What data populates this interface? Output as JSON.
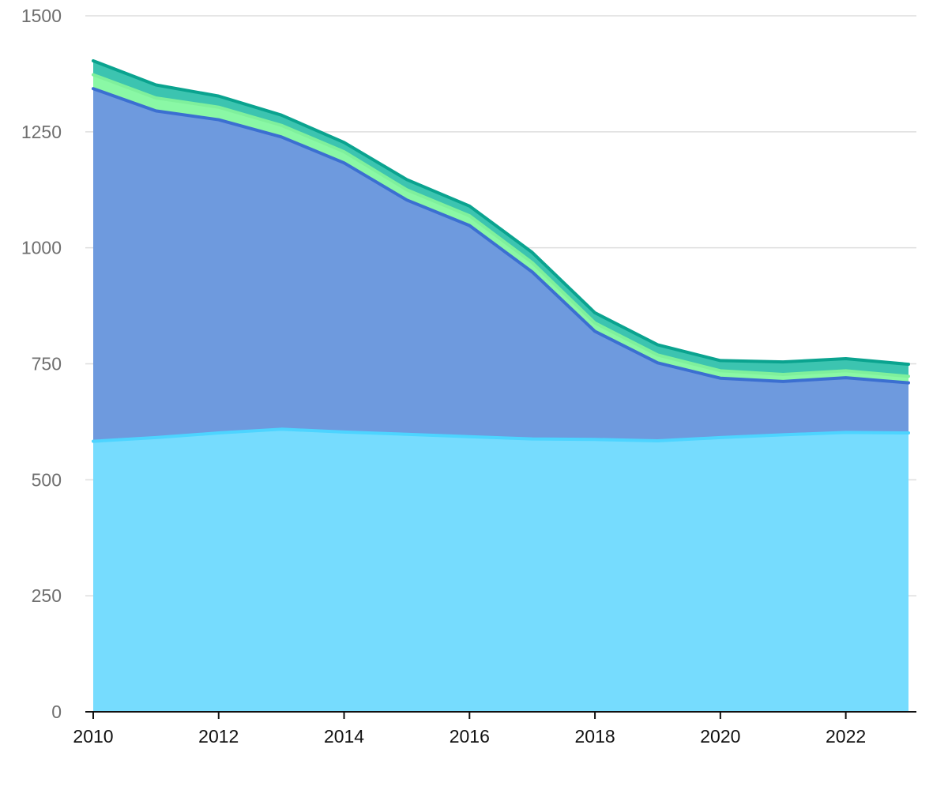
{
  "chart_data": {
    "type": "area",
    "stacked": true,
    "title": "",
    "xlabel": "",
    "ylabel": "",
    "x": [
      2010,
      2011,
      2012,
      2013,
      2014,
      2015,
      2016,
      2017,
      2018,
      2019,
      2020,
      2021,
      2022,
      2023
    ],
    "x_ticks": [
      "2010",
      "2012",
      "2014",
      "2016",
      "2018",
      "2020",
      "2022"
    ],
    "y_ticks": [
      "0",
      "250",
      "500",
      "750",
      "1000",
      "1250",
      "1500"
    ],
    "ylim": [
      0,
      1500
    ],
    "grid": true,
    "legend": "none",
    "series": [
      {
        "color": "#4dd4ff",
        "fill": "#76dcfe",
        "values": [
          583,
          591,
          601,
          609,
          603,
          598,
          593,
          588,
          587,
          584,
          591,
          597,
          602,
          601
        ]
      },
      {
        "color": "#3b6fd1",
        "fill": "#6e9ade",
        "values": [
          760,
          704,
          675,
          630,
          580,
          505,
          455,
          360,
          233,
          168,
          128,
          115,
          118,
          108
        ]
      },
      {
        "color": "#7ff09c",
        "fill": "#8af8a5",
        "values": [
          30,
          28,
          27,
          25,
          24,
          22,
          21,
          20,
          18,
          17,
          16,
          15,
          15,
          14
        ]
      },
      {
        "color": "#0aa38f",
        "fill": "#3cc4b0",
        "values": [
          30,
          28,
          24,
          22,
          20,
          22,
          21,
          22,
          22,
          22,
          22,
          27,
          26,
          26
        ]
      }
    ]
  }
}
